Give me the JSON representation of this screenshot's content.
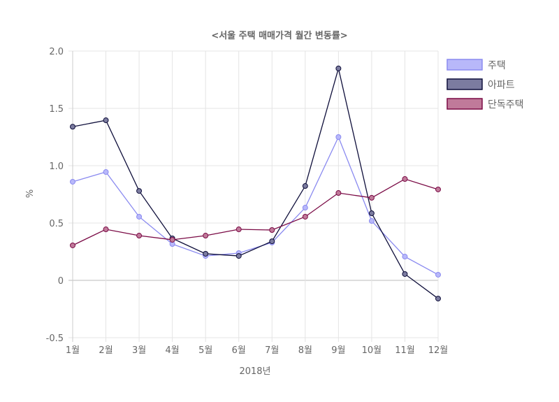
{
  "chart_data": {
    "type": "line",
    "title": "<서울 주택 매매가격 월간 변동률>",
    "xlabel": "2018년",
    "ylabel": "%",
    "ylim": [
      -0.5,
      2.0
    ],
    "yticks": [
      -0.5,
      0,
      0.5,
      1.0,
      1.5,
      2.0
    ],
    "ytick_labels": [
      "-0.5",
      "0",
      "0.5",
      "1.0",
      "1.5",
      "2.0"
    ],
    "grid": true,
    "legend_position": "right",
    "categories": [
      "1월",
      "2월",
      "3월",
      "4월",
      "5월",
      "6월",
      "7월",
      "8월",
      "9월",
      "10월",
      "11월",
      "12월"
    ],
    "series": [
      {
        "name": "주택",
        "line": "#8a8af0",
        "fill": "#b8b8fa",
        "stroke": "#8a8af0",
        "values": [
          0.86,
          0.945,
          0.555,
          0.317,
          0.213,
          0.238,
          0.33,
          0.634,
          1.25,
          0.518,
          0.207,
          0.049
        ]
      },
      {
        "name": "아파트",
        "line": "#0e0e3a",
        "fill": "#7c7ca0",
        "stroke": "#0e0e3a",
        "values": [
          1.34,
          1.396,
          0.78,
          0.366,
          0.232,
          0.213,
          0.341,
          0.823,
          1.848,
          0.585,
          0.055,
          -0.159
        ]
      },
      {
        "name": "단독주택",
        "line": "#7a0a45",
        "fill": "#c07a9a",
        "stroke": "#7a0a45",
        "values": [
          0.305,
          0.445,
          0.39,
          0.354,
          0.39,
          0.445,
          0.439,
          0.555,
          0.762,
          0.72,
          0.884,
          0.793
        ]
      }
    ]
  }
}
